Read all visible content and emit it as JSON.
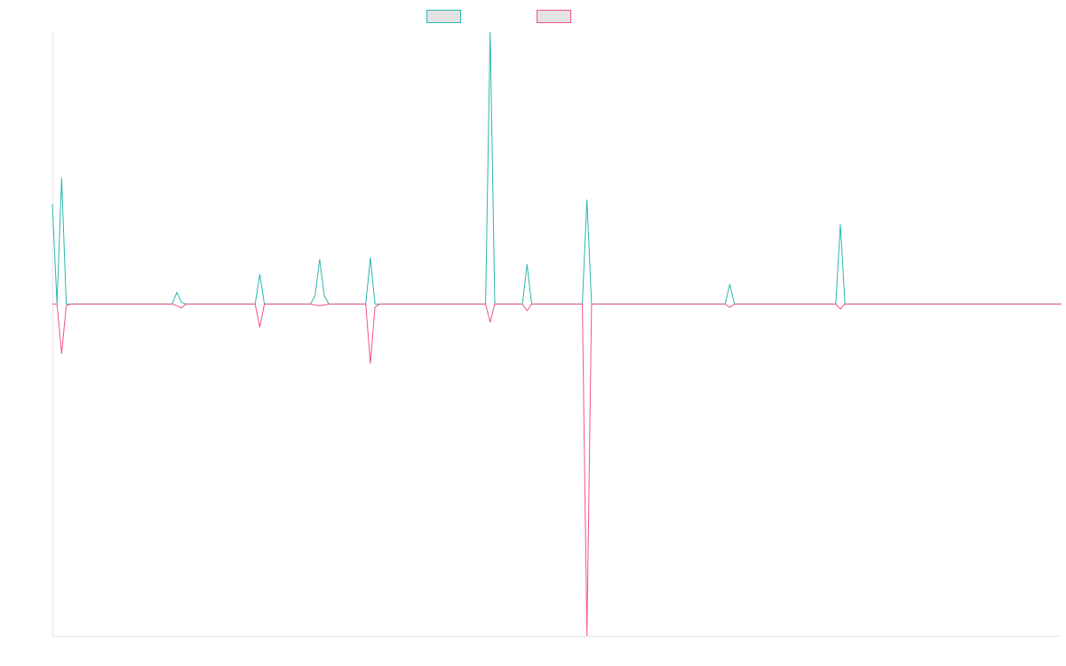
{
  "chart_data": {
    "type": "line",
    "title": "",
    "xlabel": "",
    "ylabel": "",
    "grid": false,
    "legend_position": "top-center",
    "ylim": [
      -1.0,
      0.82
    ],
    "series": [
      {
        "color": "#2bb7ad",
        "points": [
          [
            0,
            0.3
          ],
          [
            1,
            0.0
          ],
          [
            2,
            0.38
          ],
          [
            3,
            0.0
          ],
          [
            4,
            0.0
          ],
          [
            5,
            0.0
          ],
          [
            26,
            0.0
          ],
          [
            27,
            0.035
          ],
          [
            28,
            0.005
          ],
          [
            29,
            0.0
          ],
          [
            44,
            0.0
          ],
          [
            45,
            0.09
          ],
          [
            46,
            0.0
          ],
          [
            56,
            0.0
          ],
          [
            57,
            0.025
          ],
          [
            58,
            0.135
          ],
          [
            59,
            0.025
          ],
          [
            60,
            0.0
          ],
          [
            68,
            0.0
          ],
          [
            69,
            0.14
          ],
          [
            70,
            0.0
          ],
          [
            71,
            0.0
          ],
          [
            94,
            0.0
          ],
          [
            95,
            0.82
          ],
          [
            96,
            0.0
          ],
          [
            102,
            0.0
          ],
          [
            103,
            0.12
          ],
          [
            104,
            0.0
          ],
          [
            115,
            0.0
          ],
          [
            116,
            0.315
          ],
          [
            117,
            0.0
          ],
          [
            146,
            0.0
          ],
          [
            147,
            0.06
          ],
          [
            148,
            0.0
          ],
          [
            170,
            0.0
          ],
          [
            171,
            0.24
          ],
          [
            172,
            0.0
          ],
          [
            219,
            0.0
          ]
        ]
      },
      {
        "color": "#f2557d",
        "points": [
          [
            0,
            0.0
          ],
          [
            1,
            0.0
          ],
          [
            2,
            -0.15
          ],
          [
            3,
            -0.005
          ],
          [
            4,
            0.0
          ],
          [
            5,
            0.0
          ],
          [
            26,
            0.0
          ],
          [
            27,
            -0.005
          ],
          [
            28,
            -0.012
          ],
          [
            29,
            0.0
          ],
          [
            44,
            0.0
          ],
          [
            45,
            -0.07
          ],
          [
            46,
            0.0
          ],
          [
            56,
            0.0
          ],
          [
            57,
            -0.003
          ],
          [
            58,
            -0.005
          ],
          [
            59,
            -0.003
          ],
          [
            60,
            0.0
          ],
          [
            68,
            0.0
          ],
          [
            69,
            -0.18
          ],
          [
            70,
            -0.01
          ],
          [
            71,
            0.0
          ],
          [
            94,
            0.0
          ],
          [
            95,
            -0.055
          ],
          [
            96,
            0.0
          ],
          [
            102,
            0.0
          ],
          [
            103,
            -0.02
          ],
          [
            104,
            0.0
          ],
          [
            115,
            0.0
          ],
          [
            116,
            -1.0
          ],
          [
            117,
            0.0
          ],
          [
            146,
            0.0
          ],
          [
            147,
            -0.01
          ],
          [
            148,
            0.0
          ],
          [
            170,
            0.0
          ],
          [
            171,
            -0.015
          ],
          [
            172,
            0.0
          ],
          [
            219,
            0.0
          ]
        ]
      }
    ]
  }
}
